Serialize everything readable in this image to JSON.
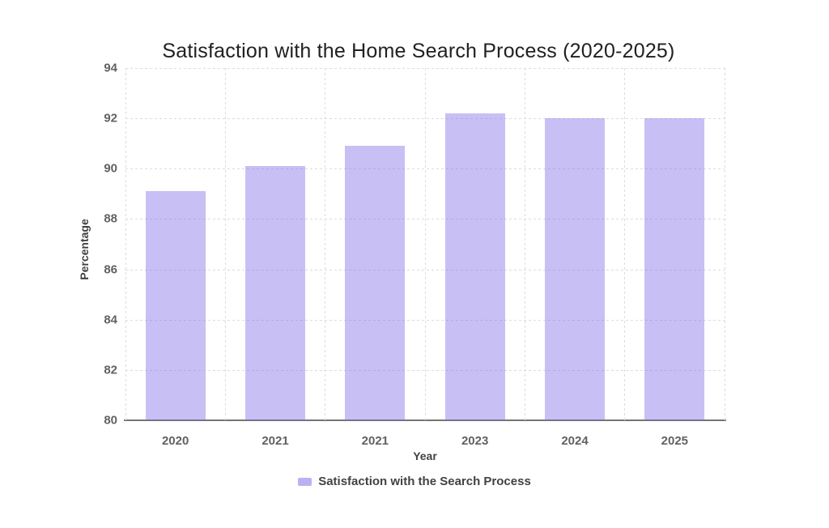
{
  "chart_data": {
    "type": "bar",
    "title": "Satisfaction with the Home Search Process (2020-2025)",
    "categories": [
      "2020",
      "2021",
      "2021",
      "2023",
      "2024",
      "2025"
    ],
    "series": [
      {
        "name": "Satisfaction with the Search Process",
        "values": [
          89.1,
          90.1,
          90.9,
          92.2,
          92.0,
          92.0
        ]
      }
    ],
    "xlabel": "Year",
    "ylabel": "Percentage",
    "ylim": [
      80,
      94
    ],
    "yticks": [
      80,
      82,
      84,
      86,
      88,
      90,
      92,
      94
    ],
    "grid": true,
    "legend_position": "bottom",
    "colors": {
      "accent_purple": "#7c6ae5",
      "bar_fill": "rgba(124,106,229,0.42)",
      "legend_fill": "rgba(124,106,229,0.52)",
      "grid": "#dcdcdc",
      "axis_line": "#757575",
      "tick_text": "#616161",
      "axis_label_text": "#424242",
      "title_text": "#212121"
    }
  }
}
